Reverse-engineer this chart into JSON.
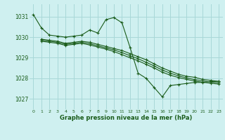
{
  "background_color": "#cff0f0",
  "grid_color": "#a8d8d8",
  "line_color": "#1a5c1a",
  "xlabel": "Graphe pression niveau de la mer (hPa)",
  "xlim": [
    -0.5,
    23.5
  ],
  "ylim": [
    1026.5,
    1031.6
  ],
  "yticks": [
    1027,
    1028,
    1029,
    1030,
    1031
  ],
  "xticks": [
    0,
    1,
    2,
    3,
    4,
    5,
    6,
    7,
    8,
    9,
    10,
    11,
    12,
    13,
    14,
    15,
    16,
    17,
    18,
    19,
    20,
    21,
    22,
    23
  ],
  "lines": [
    {
      "x": [
        0,
        1,
        2,
        3,
        4,
        5,
        6,
        7,
        8,
        9,
        10,
        11,
        12,
        13,
        14,
        15,
        16,
        17,
        18,
        19,
        20,
        21,
        22,
        23
      ],
      "y": [
        1031.1,
        1030.45,
        1030.1,
        1030.05,
        1030.0,
        1030.05,
        1030.1,
        1030.35,
        1030.2,
        1030.85,
        1030.95,
        1030.7,
        1029.5,
        1028.25,
        1028.0,
        1027.55,
        1027.1,
        1027.65,
        1027.7,
        1027.75,
        1027.8,
        1027.8,
        1027.85,
        1027.85
      ]
    },
    {
      "x": [
        1,
        2,
        3,
        4,
        5,
        6,
        7,
        8,
        9,
        10,
        11,
        12,
        13,
        14,
        15,
        16,
        17,
        18,
        19,
        20,
        21,
        22,
        23
      ],
      "y": [
        1029.9,
        1029.85,
        1029.8,
        1029.7,
        1029.75,
        1029.8,
        1029.75,
        1029.65,
        1029.55,
        1029.45,
        1029.35,
        1029.2,
        1029.05,
        1028.9,
        1028.7,
        1028.5,
        1028.35,
        1028.2,
        1028.1,
        1028.05,
        1027.95,
        1027.9,
        1027.85
      ]
    },
    {
      "x": [
        1,
        2,
        3,
        4,
        5,
        6,
        7,
        8,
        9,
        10,
        11,
        12,
        13,
        14,
        15,
        16,
        17,
        18,
        19,
        20,
        21,
        22,
        23
      ],
      "y": [
        1029.85,
        1029.8,
        1029.75,
        1029.65,
        1029.7,
        1029.75,
        1029.68,
        1029.58,
        1029.48,
        1029.38,
        1029.25,
        1029.1,
        1028.95,
        1028.78,
        1028.6,
        1028.4,
        1028.25,
        1028.12,
        1028.02,
        1027.94,
        1027.88,
        1027.82,
        1027.78
      ]
    },
    {
      "x": [
        1,
        2,
        3,
        4,
        5,
        6,
        7,
        8,
        9,
        10,
        11,
        12,
        13,
        14,
        15,
        16,
        17,
        18,
        19,
        20,
        21,
        22,
        23
      ],
      "y": [
        1029.8,
        1029.75,
        1029.7,
        1029.6,
        1029.65,
        1029.7,
        1029.62,
        1029.52,
        1029.42,
        1029.3,
        1029.15,
        1029.0,
        1028.85,
        1028.68,
        1028.5,
        1028.3,
        1028.15,
        1028.04,
        1027.95,
        1027.87,
        1027.81,
        1027.76,
        1027.72
      ]
    }
  ]
}
